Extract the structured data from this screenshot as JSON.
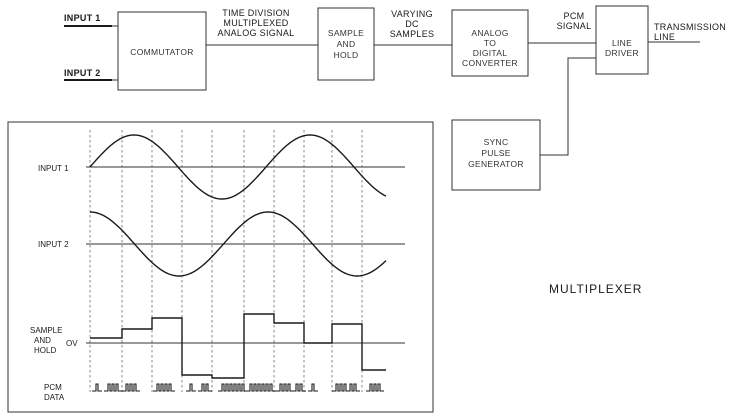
{
  "block_diagram": {
    "input_1_label": "INPUT 1",
    "input_2_label": "INPUT 2",
    "commutator_label": "COMMUTATOR",
    "tdm_signal_label": [
      "TIME DIVISION",
      "MULTIPLEXED",
      "ANALOG SIGNAL"
    ],
    "sample_hold_label": [
      "SAMPLE",
      "AND",
      "HOLD"
    ],
    "varying_dc_label": [
      "VARYING",
      "DC",
      "SAMPLES"
    ],
    "adc_label": [
      "ANALOG",
      "TO",
      "DIGITAL",
      "CONVERTER"
    ],
    "pcm_signal_label": [
      "PCM",
      "SIGNAL"
    ],
    "line_driver_label": [
      "LINE",
      "DRIVER"
    ],
    "transmission_label": [
      "TRANSMISSION",
      "LINE"
    ],
    "sync_label": [
      "SYNC",
      "PULSE",
      "GENERATOR"
    ]
  },
  "timing_diagram": {
    "input_1_label": "INPUT 1",
    "input_2_label": "INPUT 2",
    "sample_hold_label": [
      "SAMPLE",
      "AND",
      "HOLD"
    ],
    "zero_volt_label": "OV",
    "pcm_data_label": [
      "PCM",
      "DATA"
    ]
  },
  "caption": "MULTIPLEXER"
}
